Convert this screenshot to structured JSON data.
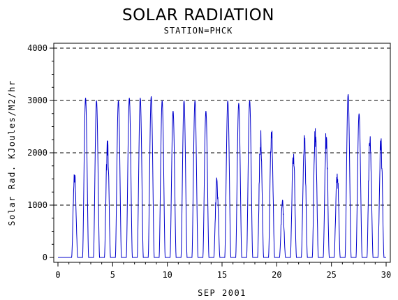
{
  "chart_data": {
    "type": "line",
    "title": "SOLAR RADIATION",
    "subtitle": "STATION=PHCK",
    "xlabel": "SEP 2001",
    "ylabel": "Solar Rad. KJoules/M2/hr",
    "xlim": [
      0,
      30
    ],
    "ylim": [
      0,
      4000
    ],
    "x_ticks": [
      "0",
      "5",
      "10",
      "15",
      "20",
      "25",
      "30"
    ],
    "y_ticks": [
      "0",
      "1000",
      "2000",
      "3000",
      "4000"
    ],
    "grid": "horizontal dashed",
    "line_color": "#0000cc",
    "series": [
      {
        "daily_peaks": [
          {
            "day": 1,
            "peak": 1700
          },
          {
            "day": 2,
            "peak": 3050
          },
          {
            "day": 3,
            "peak": 3000
          },
          {
            "day": 4,
            "peak": 2350
          },
          {
            "day": 5,
            "peak": 3000
          },
          {
            "day": 6,
            "peak": 3050
          },
          {
            "day": 7,
            "peak": 3050
          },
          {
            "day": 8,
            "peak": 3080
          },
          {
            "day": 9,
            "peak": 3000
          },
          {
            "day": 10,
            "peak": 2800
          },
          {
            "day": 11,
            "peak": 3000
          },
          {
            "day": 12,
            "peak": 3000
          },
          {
            "day": 13,
            "peak": 2800
          },
          {
            "day": 14,
            "peak": 1550
          },
          {
            "day": 15,
            "peak": 3000
          },
          {
            "day": 16,
            "peak": 2950
          },
          {
            "day": 17,
            "peak": 3000
          },
          {
            "day": 18,
            "peak": 2500
          },
          {
            "day": 19,
            "peak": 2600
          },
          {
            "day": 20,
            "peak": 1100
          },
          {
            "day": 21,
            "peak": 2150
          },
          {
            "day": 22,
            "peak": 2420
          },
          {
            "day": 23,
            "peak": 2650
          },
          {
            "day": 24,
            "peak": 2550
          },
          {
            "day": 25,
            "peak": 1800
          },
          {
            "day": 26,
            "peak": 3120
          },
          {
            "day": 27,
            "peak": 2750
          },
          {
            "day": 28,
            "peak": 2600
          },
          {
            "day": 29,
            "peak": 2400
          }
        ]
      }
    ]
  }
}
